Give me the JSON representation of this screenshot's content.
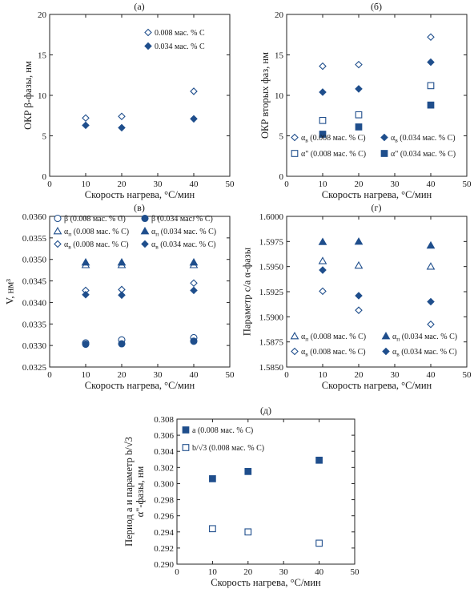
{
  "colors": {
    "marker": "#1f4e8c",
    "axis": "#222222",
    "text": "#1a1a1a"
  },
  "chart_data": [
    {
      "id": "a",
      "panel_label": "(а)",
      "type": "scatter",
      "xlabel": "Скорость нагрева, °С/мин",
      "ylabel": "ОКР β-фазы, нм",
      "xlim": [
        0,
        50
      ],
      "ylim": [
        0,
        20
      ],
      "xticks": [
        "0",
        "10",
        "20",
        "30",
        "40",
        "50"
      ],
      "yticks": [
        "0",
        "5",
        "10",
        "15",
        "20"
      ],
      "grid": false,
      "legend_position": "top-right",
      "series": [
        {
          "name": "0.008 мас. % С",
          "marker": "diamond-open",
          "x": [
            10,
            20,
            40
          ],
          "y": [
            7.2,
            7.4,
            10.5
          ]
        },
        {
          "name": "0.034 мас. % С",
          "marker": "diamond-filled",
          "x": [
            10,
            20,
            40
          ],
          "y": [
            6.3,
            6.0,
            7.1
          ]
        }
      ]
    },
    {
      "id": "b",
      "panel_label": "(б)",
      "type": "scatter",
      "xlabel": "Скорость нагрева, °С/мин",
      "ylabel": "ОКР вторых фаз, нм",
      "xlim": [
        0,
        50
      ],
      "ylim": [
        0,
        20
      ],
      "xticks": [
        "0",
        "10",
        "20",
        "30",
        "40",
        "50"
      ],
      "yticks": [
        "0",
        "5",
        "10",
        "15",
        "20"
      ],
      "grid": false,
      "legend_position": "bottom",
      "series": [
        {
          "name": "α",
          "sub": "в",
          "name_suffix": " (0.008 мас. % С)",
          "marker": "diamond-open",
          "x": [
            10,
            20,
            40
          ],
          "y": [
            13.6,
            13.8,
            17.2
          ]
        },
        {
          "name": "α",
          "sub": "в",
          "name_suffix": " (0.034 мас. % С)",
          "marker": "diamond-filled",
          "x": [
            10,
            20,
            40
          ],
          "y": [
            10.4,
            10.8,
            14.1
          ]
        },
        {
          "name": "α\"",
          "sub": "",
          "name_suffix": " (0.008 мас. % С)",
          "marker": "square-open",
          "x": [
            10,
            20,
            40
          ],
          "y": [
            6.9,
            7.6,
            11.2
          ]
        },
        {
          "name": "α\"",
          "sub": "",
          "name_suffix": " (0.034 мас. % С)",
          "marker": "square-filled",
          "x": [
            10,
            20,
            40
          ],
          "y": [
            5.2,
            6.1,
            8.8
          ]
        }
      ]
    },
    {
      "id": "c",
      "panel_label": "(в)",
      "type": "scatter",
      "xlabel": "Скорость нагрева, °С/мин",
      "ylabel": "V, нм³",
      "xlim": [
        0,
        50
      ],
      "ylim": [
        0.0325,
        0.036
      ],
      "xticks": [
        "0",
        "10",
        "20",
        "30",
        "40",
        "50"
      ],
      "yticks": [
        "0.0325",
        "0.0330",
        "0.0335",
        "0.0340",
        "0.0345",
        "0.0350",
        "0.0355",
        "0.0360"
      ],
      "grid": false,
      "legend_position": "top",
      "series": [
        {
          "name": "β",
          "sub": "",
          "name_suffix": " (0.008 мас. % С)",
          "marker": "circle-open",
          "x": [
            10,
            20,
            40
          ],
          "y": [
            0.03306,
            0.03313,
            0.03318
          ]
        },
        {
          "name": "β",
          "sub": "",
          "name_suffix": " (0.034 мас. % С)",
          "marker": "circle-filled",
          "x": [
            10,
            20,
            40
          ],
          "y": [
            0.03303,
            0.03304,
            0.0331
          ]
        },
        {
          "name": "α",
          "sub": "п",
          "name_suffix": " (0.008 мас. % С)",
          "marker": "triangle-open",
          "x": [
            10,
            20,
            40
          ],
          "y": [
            0.03487,
            0.03487,
            0.03487
          ]
        },
        {
          "name": "α",
          "sub": "п",
          "name_suffix": " (0.034 мас. % С)",
          "marker": "triangle-filled",
          "x": [
            10,
            20,
            40
          ],
          "y": [
            0.03493,
            0.03493,
            0.03493
          ]
        },
        {
          "name": "α",
          "sub": "в",
          "name_suffix": " (0.008 мас. % С)",
          "marker": "diamond-open",
          "x": [
            10,
            20,
            40
          ],
          "y": [
            0.03428,
            0.0343,
            0.03445
          ]
        },
        {
          "name": "α",
          "sub": "в",
          "name_suffix": " (0.034 мас. % С)",
          "marker": "diamond-filled",
          "x": [
            10,
            20,
            40
          ],
          "y": [
            0.03418,
            0.03417,
            0.03428
          ]
        }
      ]
    },
    {
      "id": "d",
      "panel_label": "(г)",
      "type": "scatter",
      "xlabel": "Скорость нагрева, °С/мин",
      "ylabel": "Параметр c/a α-фазы",
      "xlim": [
        0,
        50
      ],
      "ylim": [
        1.585,
        1.6
      ],
      "xticks": [
        "0",
        "10",
        "20",
        "30",
        "40",
        "50"
      ],
      "yticks": [
        "1.5850",
        "1.5875",
        "1.5900",
        "1.5925",
        "1.5950",
        "1.5975",
        "1.6000"
      ],
      "grid": false,
      "legend_position": "bottom",
      "series": [
        {
          "name": "α",
          "sub": "п",
          "name_suffix": " (0.008 мас. % С)",
          "marker": "triangle-open",
          "x": [
            10,
            20,
            40
          ],
          "y": [
            1.59555,
            1.5951,
            1.595
          ]
        },
        {
          "name": "α",
          "sub": "п",
          "name_suffix": " (0.034 мас. % С)",
          "marker": "triangle-filled",
          "x": [
            10,
            20,
            40
          ],
          "y": [
            1.59745,
            1.59748,
            1.5971
          ]
        },
        {
          "name": "α",
          "sub": "в",
          "name_suffix": " (0.008 мас. % С)",
          "marker": "diamond-open",
          "x": [
            10,
            20,
            40
          ],
          "y": [
            1.59255,
            1.59065,
            1.58925
          ]
        },
        {
          "name": "α",
          "sub": "в",
          "name_suffix": " (0.034 мас. % С)",
          "marker": "diamond-filled",
          "x": [
            10,
            20,
            40
          ],
          "y": [
            1.59465,
            1.5921,
            1.5915
          ]
        }
      ]
    },
    {
      "id": "e",
      "panel_label": "(д)",
      "type": "scatter",
      "xlabel": "Скорость нагрева, °С/мин",
      "ylabel_line1": "Период a и параметр b/√3",
      "ylabel_line2": "α\"-фазы, нм",
      "xlim": [
        0,
        50
      ],
      "ylim": [
        0.29,
        0.308
      ],
      "xticks": [
        "0",
        "10",
        "20",
        "30",
        "40",
        "50"
      ],
      "yticks": [
        "0.290",
        "0.292",
        "0.294",
        "0.296",
        "0.298",
        "0.300",
        "0.302",
        "0.304",
        "0.306",
        "0.308"
      ],
      "grid": false,
      "legend_position": "top-left",
      "series": [
        {
          "name": "a",
          "sub": "",
          "name_suffix": " (0.008 мас. % С)",
          "marker": "square-filled",
          "x": [
            10,
            20,
            40
          ],
          "y": [
            0.3006,
            0.3015,
            0.3029
          ]
        },
        {
          "name": "b/√3",
          "sub": "",
          "name_suffix": " (0.008 мас. % С)",
          "marker": "square-open",
          "x": [
            10,
            20,
            40
          ],
          "y": [
            0.2944,
            0.294,
            0.2926
          ]
        }
      ]
    }
  ]
}
